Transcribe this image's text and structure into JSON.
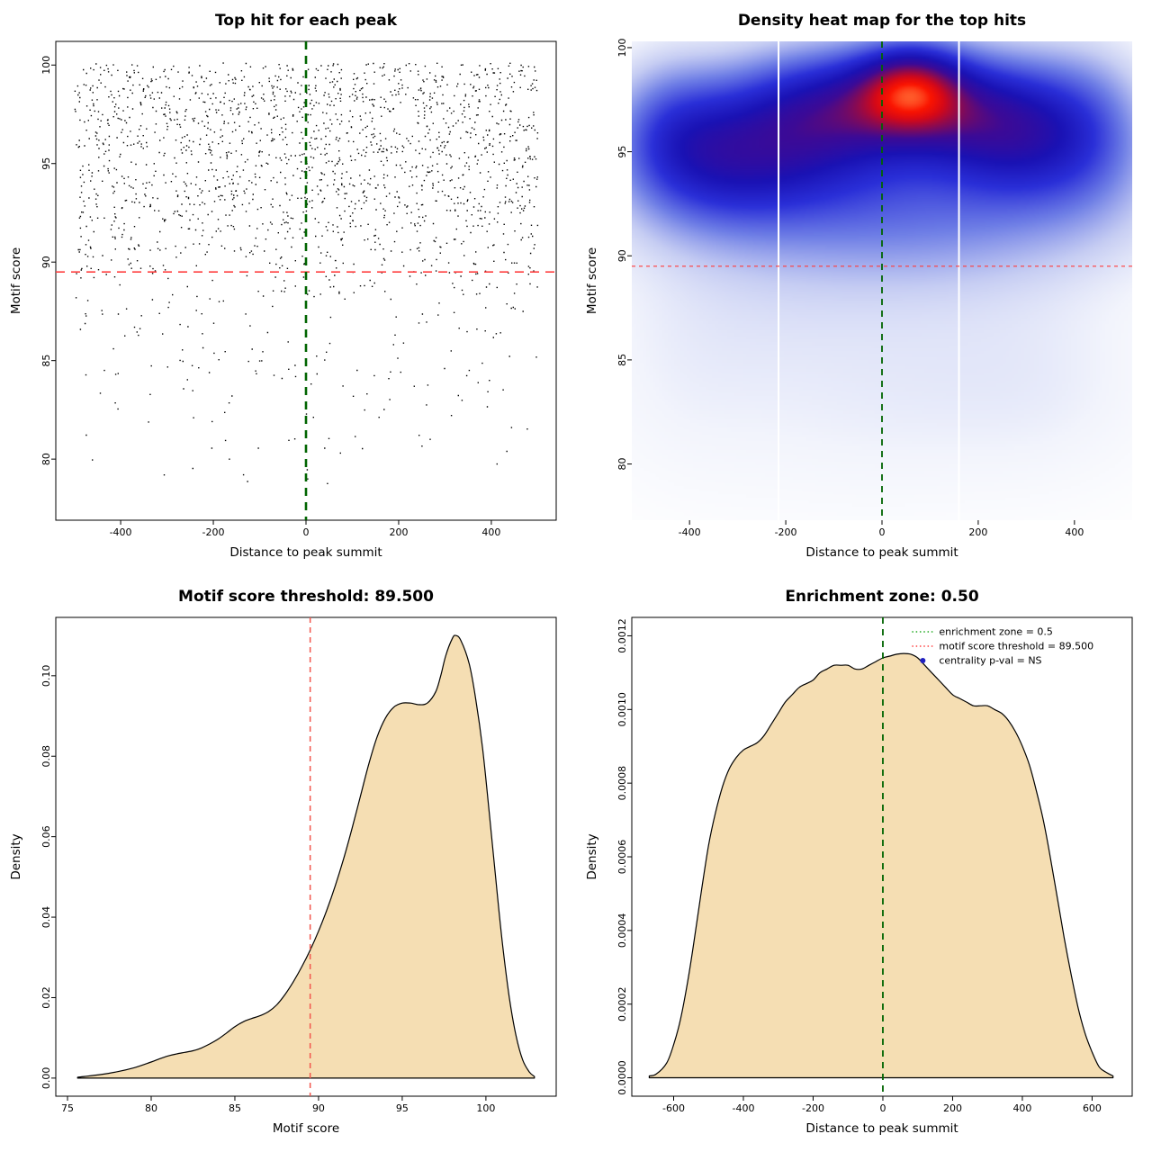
{
  "page": {
    "background": "#ffffff"
  },
  "chart_data": [
    {
      "id": "top_hits_scatter",
      "type": "scatter",
      "title": "Top hit for each peak",
      "xlabel": "Distance to peak summit",
      "ylabel": "Motif score",
      "xlim": [
        -540,
        540
      ],
      "ylim": [
        76.9,
        101.2
      ],
      "xticks": [
        -400,
        -200,
        0,
        200,
        400
      ],
      "xtick_labels": [
        "-400",
        "-200",
        "0",
        "200",
        "400"
      ],
      "yticks": [
        80,
        85,
        90,
        95,
        100
      ],
      "ytick_labels": [
        "80",
        "85",
        "90",
        "95",
        "100"
      ],
      "grid": false,
      "point_color": "#000000",
      "n_points": 2000,
      "x_range": [
        -500,
        500
      ],
      "y_range": [
        78,
        100.1
      ],
      "seed": 20240601,
      "threshold_line": {
        "y": 89.5,
        "color": "#ff4242",
        "style": "dashed"
      },
      "summit_line": {
        "x": 0,
        "color": "#006400",
        "style": "dashed"
      }
    },
    {
      "id": "density_heatmap",
      "type": "heatmap",
      "title": "Density heat map for the top hits",
      "xlabel": "Distance to peak summit",
      "ylabel": "Motif score",
      "xlim": [
        -520,
        520
      ],
      "ylim": [
        77.3,
        100.3
      ],
      "xticks": [
        -400,
        -200,
        0,
        200,
        400
      ],
      "xtick_labels": [
        "-400",
        "-200",
        "0",
        "200",
        "400"
      ],
      "yticks": [
        80,
        85,
        90,
        95,
        100
      ],
      "ytick_labels": [
        "80",
        "85",
        "90",
        "95",
        "100"
      ],
      "grid": false,
      "colormap": [
        [
          0.0,
          "#ffffff"
        ],
        [
          0.06,
          "#f2f4fc"
        ],
        [
          0.16,
          "#c6cdf3"
        ],
        [
          0.3,
          "#6f7fe6"
        ],
        [
          0.45,
          "#2a2fd8"
        ],
        [
          0.58,
          "#1a12b4"
        ],
        [
          0.7,
          "#3c0a96"
        ],
        [
          0.8,
          "#8c0a50"
        ],
        [
          0.88,
          "#d40818"
        ],
        [
          0.95,
          "#fb1400"
        ],
        [
          1.0,
          "#ff5a2a"
        ]
      ],
      "colormap_gamma": 0.8,
      "kernels": [
        {
          "x": 60,
          "y": 98.1,
          "sx": 75,
          "sy": 1.4,
          "w": 1.15
        },
        {
          "x": -50,
          "y": 97.3,
          "sx": 130,
          "sy": 1.8,
          "w": 0.85
        },
        {
          "x": 175,
          "y": 97.0,
          "sx": 115,
          "sy": 1.9,
          "w": 0.8
        },
        {
          "x": 290,
          "y": 95.9,
          "sx": 100,
          "sy": 2.2,
          "w": 0.62
        },
        {
          "x": -185,
          "y": 95.9,
          "sx": 130,
          "sy": 2.4,
          "w": 0.66
        },
        {
          "x": -335,
          "y": 94.8,
          "sx": 110,
          "sy": 2.3,
          "w": 0.6
        },
        {
          "x": 425,
          "y": 96.1,
          "sx": 90,
          "sy": 2.5,
          "w": 0.5
        },
        {
          "x": -445,
          "y": 95.9,
          "sx": 85,
          "sy": 2.3,
          "w": 0.48
        },
        {
          "x": 0,
          "y": 93.7,
          "sx": 330,
          "sy": 2.7,
          "w": 0.45
        },
        {
          "x": 110,
          "y": 91.4,
          "sx": 280,
          "sy": 2.3,
          "w": 0.2
        },
        {
          "x": -260,
          "y": 88.0,
          "sx": 210,
          "sy": 3.1,
          "w": 0.09
        },
        {
          "x": 160,
          "y": 85.6,
          "sx": 230,
          "sy": 3.6,
          "w": 0.08
        },
        {
          "x": -90,
          "y": 82.0,
          "sx": 260,
          "sy": 3.2,
          "w": 0.05
        },
        {
          "x": 360,
          "y": 83.6,
          "sx": 150,
          "sy": 3.2,
          "w": 0.045
        },
        {
          "x": -420,
          "y": 84.0,
          "sx": 130,
          "sy": 3.4,
          "w": 0.04
        }
      ],
      "white_columns": [
        -215,
        160
      ],
      "threshold_line": {
        "y": 89.5,
        "color": "#ff3b3b",
        "style": "dashed"
      },
      "summit_line": {
        "x": 0,
        "color": "#006400",
        "style": "dashed"
      }
    },
    {
      "id": "score_density",
      "type": "area",
      "title": "Motif score threshold: 89.500",
      "xlabel": "Motif score",
      "ylabel": "Density",
      "xlim": [
        74.3,
        104.2
      ],
      "ylim": [
        -0.0045,
        0.1145
      ],
      "xticks": [
        75,
        80,
        85,
        90,
        95,
        100
      ],
      "xtick_labels": [
        "75",
        "80",
        "85",
        "90",
        "95",
        "100"
      ],
      "yticks": [
        0,
        0.02,
        0.04,
        0.06,
        0.08,
        0.1
      ],
      "ytick_labels": [
        "0.00",
        "0.02",
        "0.04",
        "0.06",
        "0.08",
        "0.10"
      ],
      "grid": false,
      "fill": "#f5deb3",
      "stroke": "#000000",
      "points": [
        [
          75.6,
          0.0002
        ],
        [
          76,
          0.0004
        ],
        [
          77,
          0.0009
        ],
        [
          78,
          0.0016
        ],
        [
          79,
          0.0026
        ],
        [
          80,
          0.004
        ],
        [
          80.5,
          0.0048
        ],
        [
          81,
          0.0055
        ],
        [
          81.5,
          0.006
        ],
        [
          82,
          0.0064
        ],
        [
          82.5,
          0.0068
        ],
        [
          83,
          0.0075
        ],
        [
          83.5,
          0.0085
        ],
        [
          84,
          0.0097
        ],
        [
          84.5,
          0.0112
        ],
        [
          85,
          0.0128
        ],
        [
          85.5,
          0.014
        ],
        [
          86,
          0.0148
        ],
        [
          86.5,
          0.0155
        ],
        [
          87,
          0.0165
        ],
        [
          87.5,
          0.0182
        ],
        [
          88,
          0.0208
        ],
        [
          88.5,
          0.024
        ],
        [
          89,
          0.0277
        ],
        [
          89.5,
          0.0318
        ],
        [
          90,
          0.0365
        ],
        [
          90.5,
          0.0418
        ],
        [
          91,
          0.0478
        ],
        [
          91.5,
          0.0545
        ],
        [
          92,
          0.062
        ],
        [
          92.5,
          0.07
        ],
        [
          93,
          0.078
        ],
        [
          93.5,
          0.0848
        ],
        [
          94,
          0.0895
        ],
        [
          94.5,
          0.0922
        ],
        [
          95,
          0.0932
        ],
        [
          95.5,
          0.0932
        ],
        [
          96,
          0.0928
        ],
        [
          96.5,
          0.0932
        ],
        [
          97,
          0.096
        ],
        [
          97.3,
          0.1
        ],
        [
          97.6,
          0.105
        ],
        [
          98,
          0.1093
        ],
        [
          98.2,
          0.11
        ],
        [
          98.5,
          0.1088
        ],
        [
          99,
          0.103
        ],
        [
          99.4,
          0.094
        ],
        [
          99.8,
          0.082
        ],
        [
          100.2,
          0.066
        ],
        [
          100.6,
          0.049
        ],
        [
          101,
          0.033
        ],
        [
          101.4,
          0.02
        ],
        [
          101.8,
          0.0105
        ],
        [
          102.2,
          0.0045
        ],
        [
          102.6,
          0.0015
        ],
        [
          102.9,
          0.0004
        ]
      ],
      "threshold_line": {
        "x": 89.5,
        "color": "#f2564d",
        "style": "dashed"
      }
    },
    {
      "id": "distance_density",
      "type": "area",
      "title": "Enrichment zone: 0.50",
      "xlabel": "Distance to peak summit",
      "ylabel": "Density",
      "xlim": [
        -720,
        715
      ],
      "ylim": [
        -5e-05,
        0.00125
      ],
      "xticks": [
        -600,
        -400,
        -200,
        0,
        200,
        400,
        600
      ],
      "xtick_labels": [
        "-600",
        "-400",
        "-200",
        "0",
        "200",
        "400",
        "600"
      ],
      "yticks": [
        0,
        0.0002,
        0.0004,
        0.0006,
        0.0008,
        0.001,
        0.0012
      ],
      "ytick_labels": [
        "0.0000",
        "0.0002",
        "0.0004",
        "0.0006",
        "0.0008",
        "0.0010",
        "0.0012"
      ],
      "grid": false,
      "fill": "#f5deb3",
      "stroke": "#000000",
      "points": [
        [
          -670,
          5e-06
        ],
        [
          -650,
          1e-05
        ],
        [
          -620,
          4e-05
        ],
        [
          -600,
          9e-05
        ],
        [
          -580,
          0.00016
        ],
        [
          -560,
          0.00026
        ],
        [
          -540,
          0.00038
        ],
        [
          -520,
          0.00051
        ],
        [
          -500,
          0.00063
        ],
        [
          -480,
          0.00072
        ],
        [
          -460,
          0.00079
        ],
        [
          -440,
          0.00084
        ],
        [
          -420,
          0.00087
        ],
        [
          -400,
          0.00089
        ],
        [
          -380,
          0.0009
        ],
        [
          -360,
          0.00091
        ],
        [
          -340,
          0.00093
        ],
        [
          -320,
          0.00096
        ],
        [
          -300,
          0.00099
        ],
        [
          -280,
          0.00102
        ],
        [
          -260,
          0.00104
        ],
        [
          -240,
          0.00106
        ],
        [
          -220,
          0.00107
        ],
        [
          -200,
          0.00108
        ],
        [
          -180,
          0.0011
        ],
        [
          -160,
          0.00111
        ],
        [
          -140,
          0.00112
        ],
        [
          -120,
          0.00112
        ],
        [
          -100,
          0.00112
        ],
        [
          -80,
          0.00111
        ],
        [
          -60,
          0.00111
        ],
        [
          -40,
          0.00112
        ],
        [
          -20,
          0.00113
        ],
        [
          0,
          0.00114
        ],
        [
          20,
          0.001145
        ],
        [
          40,
          0.00115
        ],
        [
          60,
          0.001152
        ],
        [
          80,
          0.00115
        ],
        [
          100,
          0.00114
        ],
        [
          120,
          0.00112
        ],
        [
          140,
          0.0011
        ],
        [
          160,
          0.00108
        ],
        [
          180,
          0.00106
        ],
        [
          200,
          0.00104
        ],
        [
          220,
          0.00103
        ],
        [
          240,
          0.00102
        ],
        [
          260,
          0.00101
        ],
        [
          280,
          0.00101
        ],
        [
          300,
          0.00101
        ],
        [
          320,
          0.001
        ],
        [
          340,
          0.00099
        ],
        [
          360,
          0.00097
        ],
        [
          380,
          0.00094
        ],
        [
          400,
          0.0009
        ],
        [
          420,
          0.00085
        ],
        [
          440,
          0.00078
        ],
        [
          460,
          0.0007
        ],
        [
          480,
          0.0006
        ],
        [
          500,
          0.00049
        ],
        [
          520,
          0.00038
        ],
        [
          540,
          0.00028
        ],
        [
          560,
          0.00019
        ],
        [
          580,
          0.00012
        ],
        [
          600,
          7e-05
        ],
        [
          620,
          3e-05
        ],
        [
          640,
          1.5e-05
        ],
        [
          660,
          5e-06
        ]
      ],
      "summit_line": {
        "x": 0,
        "color": "#006400",
        "style": "dashed"
      },
      "legend": [
        {
          "label": "enrichment zone = 0.5",
          "color": "#22aa22",
          "style": "dotted-line"
        },
        {
          "label": "motif score threshold = 89.500",
          "color": "#ff4242",
          "style": "dotted-line"
        },
        {
          "label": "centrality p-val = NS",
          "color": "#2020c0",
          "style": "point"
        }
      ]
    }
  ]
}
